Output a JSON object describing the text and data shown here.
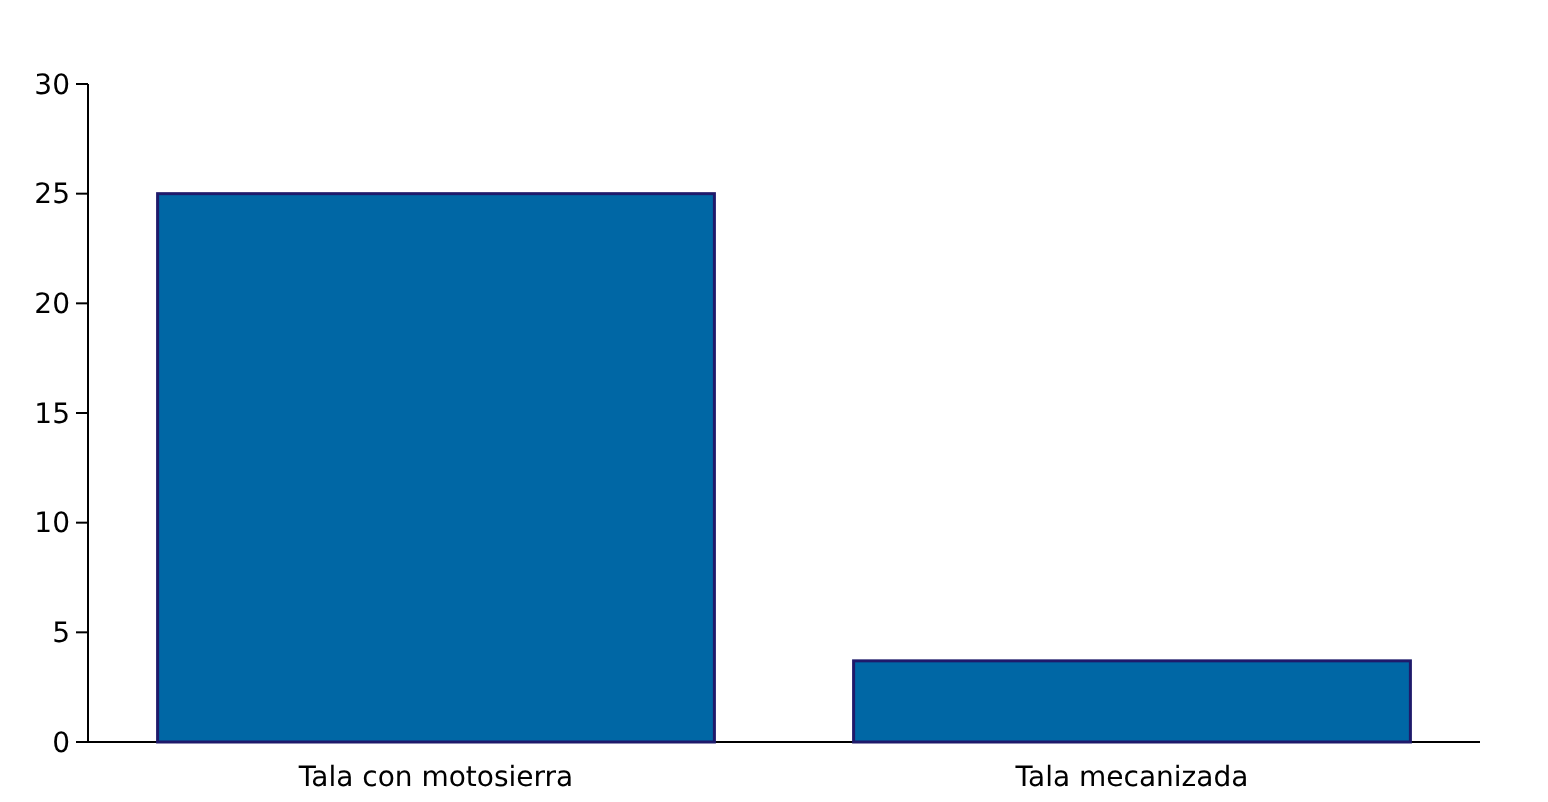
{
  "chart_data": {
    "type": "bar",
    "categories": [
      "Tala con motosierra",
      "Tala mecanizada"
    ],
    "values": [
      25,
      3.7
    ],
    "color": "#0067a5",
    "ylim": [
      0,
      30
    ],
    "yticks": [
      0,
      5,
      10,
      15,
      20,
      25,
      30
    ],
    "grid": false
  }
}
